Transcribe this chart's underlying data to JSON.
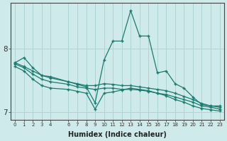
{
  "xlabel": "Humidex (Indice chaleur)",
  "ylabel": "",
  "bg_color": "#ceeaea",
  "grid_color": "#aed4d4",
  "line_color": "#1a7a6e",
  "xlim": [
    -0.5,
    23.5
  ],
  "ylim": [
    6.88,
    8.72
  ],
  "yticks": [
    7,
    8
  ],
  "xticks": [
    0,
    1,
    2,
    3,
    4,
    6,
    7,
    8,
    9,
    10,
    11,
    12,
    13,
    14,
    15,
    16,
    17,
    18,
    19,
    20,
    21,
    22,
    23
  ],
  "series": [
    {
      "x": [
        0,
        1,
        2,
        3,
        4,
        6,
        7,
        8,
        9,
        10,
        11,
        12,
        13,
        14,
        15,
        16,
        17,
        18,
        19,
        20,
        21,
        22,
        23
      ],
      "y": [
        7.78,
        7.86,
        7.7,
        7.58,
        7.56,
        7.48,
        7.44,
        7.4,
        7.15,
        7.82,
        8.12,
        8.12,
        8.6,
        8.2,
        8.2,
        7.62,
        7.65,
        7.45,
        7.38,
        7.24,
        7.12,
        7.1,
        7.1
      ]
    },
    {
      "x": [
        0,
        1,
        2,
        3,
        4,
        6,
        7,
        8,
        9,
        10,
        11,
        12,
        13,
        14,
        15,
        16,
        17,
        18,
        19,
        20,
        21,
        22,
        23
      ],
      "y": [
        7.78,
        7.72,
        7.65,
        7.58,
        7.54,
        7.48,
        7.45,
        7.42,
        7.42,
        7.45,
        7.44,
        7.42,
        7.42,
        7.4,
        7.38,
        7.36,
        7.34,
        7.3,
        7.25,
        7.2,
        7.14,
        7.1,
        7.08
      ]
    },
    {
      "x": [
        0,
        1,
        2,
        3,
        4,
        6,
        7,
        8,
        9,
        10,
        11,
        12,
        13,
        14,
        15,
        16,
        17,
        18,
        19,
        20,
        21,
        22,
        23
      ],
      "y": [
        7.76,
        7.7,
        7.6,
        7.52,
        7.48,
        7.44,
        7.4,
        7.38,
        7.36,
        7.38,
        7.38,
        7.36,
        7.36,
        7.35,
        7.33,
        7.3,
        7.28,
        7.24,
        7.2,
        7.16,
        7.1,
        7.08,
        7.05
      ]
    },
    {
      "x": [
        0,
        1,
        2,
        3,
        4,
        6,
        7,
        8,
        9,
        10,
        11,
        12,
        13,
        14,
        15,
        16,
        17,
        18,
        19,
        20,
        21,
        22,
        23
      ],
      "y": [
        7.72,
        7.65,
        7.52,
        7.42,
        7.38,
        7.36,
        7.33,
        7.3,
        7.05,
        7.3,
        7.32,
        7.35,
        7.38,
        7.36,
        7.34,
        7.3,
        7.26,
        7.2,
        7.16,
        7.1,
        7.06,
        7.04,
        7.02
      ]
    }
  ]
}
